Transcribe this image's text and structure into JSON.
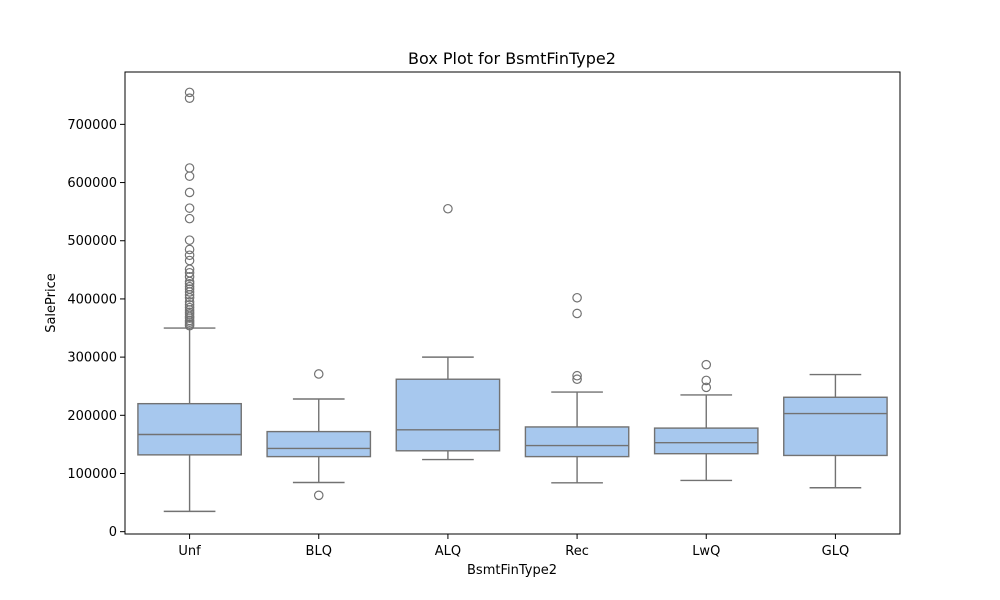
{
  "chart_data": {
    "type": "box",
    "title": "Box Plot for BsmtFinType2",
    "xlabel": "BsmtFinType2",
    "ylabel": "SalePrice",
    "ylim": [
      -4000,
      790000
    ],
    "yticks": [
      0,
      100000,
      200000,
      300000,
      400000,
      500000,
      600000,
      700000
    ],
    "categories": [
      "Unf",
      "BLQ",
      "ALQ",
      "Rec",
      "LwQ",
      "GLQ"
    ],
    "boxes": [
      {
        "category": "Unf",
        "whisker_low": 34900,
        "q1": 132000,
        "median": 167000,
        "q3": 220000,
        "whisker_high": 350000,
        "outliers": [
          354000,
          357000,
          360000,
          363000,
          367000,
          370000,
          374000,
          377000,
          381000,
          385000,
          390000,
          395000,
          402000,
          407000,
          412000,
          417000,
          421000,
          426000,
          430000,
          438000,
          445000,
          451000,
          466000,
          475000,
          485000,
          501000,
          538000,
          556000,
          583000,
          611000,
          625000,
          745000,
          755000
        ]
      },
      {
        "category": "BLQ",
        "whisker_low": 84500,
        "q1": 129000,
        "median": 143000,
        "q3": 172000,
        "whisker_high": 228000,
        "outliers": [
          62500,
          271000
        ]
      },
      {
        "category": "ALQ",
        "whisker_low": 124000,
        "q1": 139000,
        "median": 175000,
        "q3": 262000,
        "whisker_high": 300000,
        "outliers": [
          555000
        ]
      },
      {
        "category": "Rec",
        "whisker_low": 84000,
        "q1": 129000,
        "median": 148000,
        "q3": 180000,
        "whisker_high": 240000,
        "outliers": [
          262000,
          268000,
          375000,
          402000
        ]
      },
      {
        "category": "LwQ",
        "whisker_low": 88000,
        "q1": 134000,
        "median": 153000,
        "q3": 178000,
        "whisker_high": 235000,
        "outliers": [
          248000,
          260000,
          287000
        ]
      },
      {
        "category": "GLQ",
        "whisker_low": 75500,
        "q1": 131000,
        "median": 203000,
        "q3": 231000,
        "whisker_high": 270000,
        "outliers": []
      }
    ],
    "colors": {
      "box_fill": "#a7c8ee",
      "line": "#727272",
      "frame": "#000000"
    },
    "grid": false,
    "legend": "none"
  }
}
